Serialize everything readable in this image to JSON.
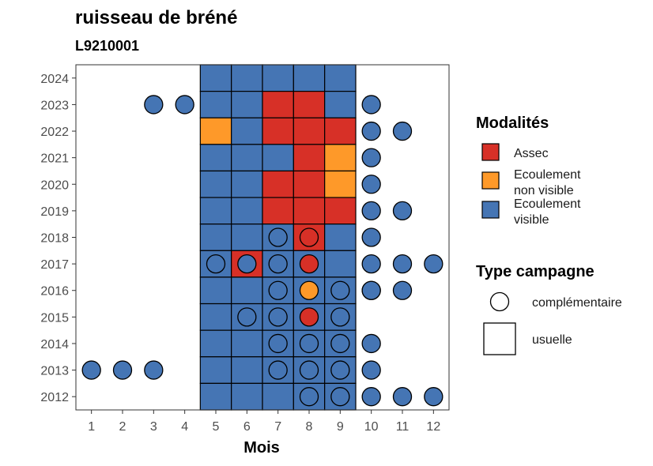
{
  "title": "ruisseau de bréné",
  "subtitle": "L9210001",
  "colors": {
    "Assec": "#d73027",
    "Ecoulement non visible": "#fe9929",
    "Ecoulement visible": "#4575b4",
    "stroke": "#000000"
  },
  "legend": {
    "modalites_title": "Modalités",
    "modalites": [
      {
        "key": "Assec",
        "lines": [
          "Assec"
        ]
      },
      {
        "key": "Ecoulement non visible",
        "lines": [
          "Ecoulement",
          "non visible"
        ]
      },
      {
        "key": "Ecoulement visible",
        "lines": [
          "Ecoulement",
          "visible"
        ]
      }
    ],
    "type_title": "Type campagne",
    "types": [
      {
        "key": "complémentaire",
        "label": "complémentaire",
        "shape": "circle"
      },
      {
        "key": "usuelle",
        "label": "usuelle",
        "shape": "square"
      }
    ]
  },
  "chart_data": {
    "type": "heatmap",
    "xlabel": "Mois",
    "ylabel": "",
    "x_ticks": [
      1,
      2,
      3,
      4,
      5,
      6,
      7,
      8,
      9,
      10,
      11,
      12
    ],
    "y_ticks": [
      2012,
      2013,
      2014,
      2015,
      2016,
      2017,
      2018,
      2019,
      2020,
      2021,
      2022,
      2023,
      2024
    ],
    "xlim": [
      0.5,
      12.5
    ],
    "ylim": [
      2011.5,
      2024.5
    ],
    "grid": false,
    "legend_position": "right",
    "usuelle": [
      {
        "year": 2024,
        "months": [
          "V",
          "V",
          "V",
          "V",
          "V"
        ]
      },
      {
        "year": 2023,
        "months": [
          "V",
          "V",
          "A",
          "A",
          "V"
        ]
      },
      {
        "year": 2022,
        "months": [
          "N",
          "V",
          "A",
          "A",
          "A"
        ]
      },
      {
        "year": 2021,
        "months": [
          "V",
          "V",
          "V",
          "A",
          "N"
        ]
      },
      {
        "year": 2020,
        "months": [
          "V",
          "V",
          "A",
          "A",
          "N"
        ]
      },
      {
        "year": 2019,
        "months": [
          "V",
          "V",
          "A",
          "A",
          "A"
        ]
      },
      {
        "year": 2018,
        "months": [
          "V",
          "V",
          "V",
          "A",
          "V"
        ]
      },
      {
        "year": 2017,
        "months": [
          "V",
          "A",
          "V",
          "V",
          "V"
        ]
      },
      {
        "year": 2016,
        "months": [
          "V",
          "V",
          "V",
          "V",
          "V"
        ]
      },
      {
        "year": 2015,
        "months": [
          "V",
          "V",
          "V",
          "V",
          "V"
        ]
      },
      {
        "year": 2014,
        "months": [
          "V",
          "V",
          "V",
          "V",
          "V"
        ]
      },
      {
        "year": 2013,
        "months": [
          "V",
          "V",
          "V",
          "V",
          "V"
        ]
      },
      {
        "year": 2012,
        "months": [
          "V",
          "V",
          "V",
          "V",
          "V"
        ]
      }
    ],
    "usuelle_months": [
      5,
      6,
      7,
      8,
      9
    ],
    "status_codes": {
      "A": "Assec",
      "N": "Ecoulement non visible",
      "V": "Ecoulement visible"
    },
    "complementaire": [
      {
        "year": 2023,
        "month": 3,
        "status": "V"
      },
      {
        "year": 2023,
        "month": 4,
        "status": "V"
      },
      {
        "year": 2023,
        "month": 10,
        "status": "V"
      },
      {
        "year": 2022,
        "month": 10,
        "status": "V"
      },
      {
        "year": 2022,
        "month": 11,
        "status": "V"
      },
      {
        "year": 2021,
        "month": 10,
        "status": "V"
      },
      {
        "year": 2020,
        "month": 10,
        "status": "V"
      },
      {
        "year": 2019,
        "month": 10,
        "status": "V"
      },
      {
        "year": 2019,
        "month": 11,
        "status": "V"
      },
      {
        "year": 2018,
        "month": 7,
        "status": "V"
      },
      {
        "year": 2018,
        "month": 8,
        "status": "A"
      },
      {
        "year": 2018,
        "month": 10,
        "status": "V"
      },
      {
        "year": 2017,
        "month": 5,
        "status": "V"
      },
      {
        "year": 2017,
        "month": 6,
        "status": "V"
      },
      {
        "year": 2017,
        "month": 7,
        "status": "V"
      },
      {
        "year": 2017,
        "month": 8,
        "status": "A"
      },
      {
        "year": 2017,
        "month": 10,
        "status": "V"
      },
      {
        "year": 2017,
        "month": 11,
        "status": "V"
      },
      {
        "year": 2017,
        "month": 12,
        "status": "V"
      },
      {
        "year": 2016,
        "month": 7,
        "status": "V"
      },
      {
        "year": 2016,
        "month": 8,
        "status": "N"
      },
      {
        "year": 2016,
        "month": 9,
        "status": "V"
      },
      {
        "year": 2016,
        "month": 10,
        "status": "V"
      },
      {
        "year": 2016,
        "month": 10,
        "status": "V"
      },
      {
        "year": 2016,
        "month": 11,
        "status": "V"
      },
      {
        "year": 2015,
        "month": 6,
        "status": "V"
      },
      {
        "year": 2015,
        "month": 7,
        "status": "V"
      },
      {
        "year": 2015,
        "month": 8,
        "status": "A"
      },
      {
        "year": 2015,
        "month": 9,
        "status": "V"
      },
      {
        "year": 2014,
        "month": 7,
        "status": "V"
      },
      {
        "year": 2014,
        "month": 8,
        "status": "V"
      },
      {
        "year": 2014,
        "month": 9,
        "status": "V"
      },
      {
        "year": 2014,
        "month": 10,
        "status": "V"
      },
      {
        "year": 2013,
        "month": 1,
        "status": "V"
      },
      {
        "year": 2013,
        "month": 2,
        "status": "V"
      },
      {
        "year": 2013,
        "month": 3,
        "status": "V"
      },
      {
        "year": 2013,
        "month": 7,
        "status": "V"
      },
      {
        "year": 2013,
        "month": 8,
        "status": "V"
      },
      {
        "year": 2013,
        "month": 9,
        "status": "V"
      },
      {
        "year": 2013,
        "month": 10,
        "status": "V"
      },
      {
        "year": 2012,
        "month": 8,
        "status": "V"
      },
      {
        "year": 2012,
        "month": 9,
        "status": "V"
      },
      {
        "year": 2012,
        "month": 10,
        "status": "V"
      },
      {
        "year": 2012,
        "month": 11,
        "status": "V"
      },
      {
        "year": 2012,
        "month": 12,
        "status": "V"
      }
    ]
  }
}
